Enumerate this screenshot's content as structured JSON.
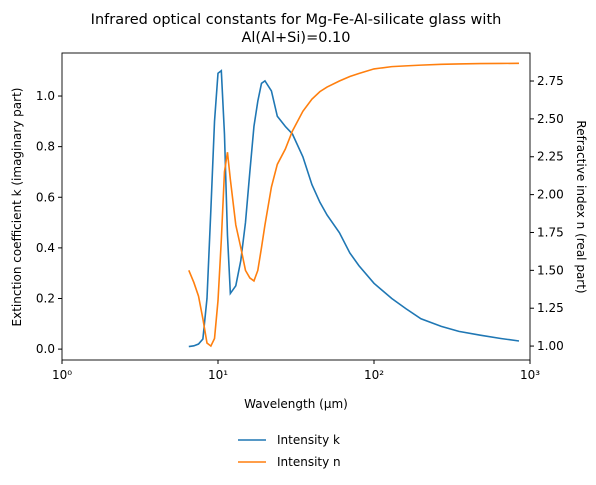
{
  "chart_data": {
    "type": "line",
    "title": [
      "Infrared optical constants for Mg-Fe-Al-silicate glass with",
      "Al(Al+Si)=0.10"
    ],
    "xlabel": "Wavelength (μm)",
    "ylabel": "Extinction coefficient k (imaginary part)",
    "y2label": "Refractive index n (real part)",
    "xscale": "log",
    "xlim": [
      1,
      1000
    ],
    "xticks": [
      {
        "value": 1,
        "label": "10⁰"
      },
      {
        "value": 10,
        "label": "10¹"
      },
      {
        "value": 100,
        "label": "10²"
      },
      {
        "value": 1000,
        "label": "10³"
      }
    ],
    "ylim": [
      -0.043,
      1.17
    ],
    "yticks": [
      {
        "value": 0,
        "label": "0.0"
      },
      0.2,
      0.4,
      0.6,
      0.8,
      {
        "value": 1,
        "label": "1.0"
      }
    ],
    "y2lim": [
      0.908,
      2.935
    ],
    "y2ticks": [
      {
        "value": 1,
        "label": "1.00"
      },
      1.25,
      {
        "value": 1.5,
        "label": "1.50"
      },
      1.75,
      {
        "value": 2,
        "label": "2.00"
      },
      2.25,
      {
        "value": 2.5,
        "label": "2.50"
      },
      2.75
    ],
    "legend": "lower center outside",
    "x": [
      6.5,
      7,
      7.5,
      8,
      8.5,
      9,
      9.5,
      10,
      10.5,
      11,
      11.5,
      12,
      13,
      14,
      15,
      16,
      17,
      18,
      19,
      20,
      22,
      24,
      27,
      30,
      35,
      40,
      45,
      50,
      60,
      70,
      80,
      100,
      130,
      160,
      200,
      270,
      350,
      480,
      650,
      850
    ],
    "series": [
      {
        "name": "Intensity k",
        "color": "#1f77b4",
        "values": [
          0.01,
          0.013,
          0.02,
          0.04,
          0.2,
          0.55,
          0.9,
          1.09,
          1.1,
          0.85,
          0.45,
          0.22,
          0.25,
          0.35,
          0.5,
          0.7,
          0.88,
          0.98,
          1.05,
          1.06,
          1.02,
          0.92,
          0.88,
          0.85,
          0.76,
          0.65,
          0.58,
          0.53,
          0.46,
          0.38,
          0.33,
          0.26,
          0.2,
          0.16,
          0.12,
          0.09,
          0.07,
          0.055,
          0.042,
          0.032
        ]
      },
      {
        "name": "Intensity n",
        "color": "#ff7f0e",
        "axis": "y2",
        "values": [
          1.5,
          1.42,
          1.33,
          1.18,
          1.02,
          1.0,
          1.05,
          1.3,
          1.7,
          2.15,
          2.28,
          2.1,
          1.8,
          1.65,
          1.5,
          1.45,
          1.43,
          1.5,
          1.65,
          1.8,
          2.05,
          2.2,
          2.3,
          2.42,
          2.55,
          2.63,
          2.68,
          2.71,
          2.75,
          2.78,
          2.8,
          2.83,
          2.845,
          2.85,
          2.855,
          2.86,
          2.863,
          2.865,
          2.866,
          2.867
        ]
      }
    ]
  }
}
